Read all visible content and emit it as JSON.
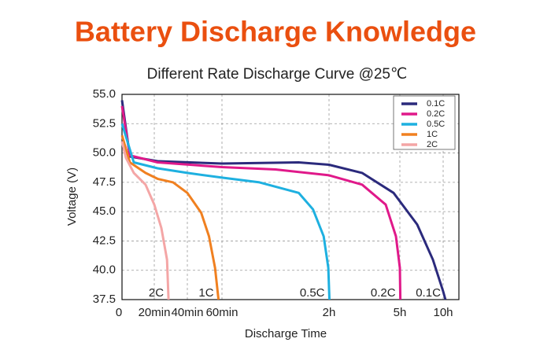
{
  "header": {
    "title": "Battery Discharge Knowledge"
  },
  "chart_data": {
    "type": "line",
    "title": "Different Rate Discharge Curve @25℃",
    "x_label": "Discharge Time",
    "y_label": "Voltage (V)",
    "xlim": [
      0,
      710
    ],
    "ylim": [
      37.5,
      55
    ],
    "xticks": [
      0,
      {
        "value": 20,
        "label": "20min"
      },
      {
        "value": 40,
        "label": "40min"
      },
      {
        "value": 60,
        "label": "60min"
      },
      {
        "value": 120,
        "label": "2h"
      },
      {
        "value": 300,
        "label": "5h"
      },
      {
        "value": 600,
        "label": "10h"
      }
    ],
    "yticks": [
      37.5,
      {
        "value": 40,
        "label": "40.0"
      },
      42.5,
      {
        "value": 45,
        "label": "45.0"
      },
      47.5,
      {
        "value": 50,
        "label": "50.0"
      },
      52.5,
      {
        "value": 55,
        "label": "55.0"
      }
    ],
    "grid": true,
    "legend": "top-right",
    "series": [
      {
        "name": "0.1C",
        "color": "#2b2a7c",
        "x": [
          0,
          4.9,
          22,
          60,
          103,
          120,
          204,
          284,
          420,
          529,
          600,
          616
        ],
        "values": [
          54.5,
          49.7,
          49.3,
          49.1,
          49.2,
          49.0,
          48.3,
          46.6,
          43.9,
          40.9,
          38.2,
          37.5
        ]
      },
      {
        "name": "0.2C",
        "color": "#e0198a",
        "x": [
          0,
          4.9,
          22,
          60,
          90,
          120,
          204,
          264,
          290,
          300,
          303
        ],
        "values": [
          54,
          49.8,
          49.2,
          48.8,
          48.6,
          48.1,
          47.3,
          45.6,
          42.9,
          40.2,
          37.5
        ]
      },
      {
        "name": "0.5C",
        "color": "#1eb0e0",
        "x": [
          0,
          7.3,
          22,
          40,
          60,
          81,
          103,
          111,
          117,
          119.6,
          121
        ],
        "values": [
          52.5,
          49.2,
          48.7,
          48.3,
          47.9,
          47.5,
          46.6,
          45.2,
          42.9,
          40.2,
          37.5
        ]
      },
      {
        "name": "1C",
        "color": "#f08020",
        "x": [
          0,
          4.9,
          14.6,
          22,
          31.4,
          40,
          48,
          52.5,
          56,
          58
        ],
        "values": [
          51.5,
          49.2,
          48.3,
          47.8,
          47.5,
          46.6,
          44.9,
          42.9,
          40.2,
          37.5
        ]
      },
      {
        "name": "2C",
        "color": "#f4a6a6",
        "x": [
          0,
          2.4,
          7.3,
          14.6,
          20,
          24.3,
          27.7,
          28.6
        ],
        "values": [
          51,
          49.6,
          48.3,
          47.3,
          45.6,
          43.6,
          40.9,
          37.5
        ]
      }
    ]
  }
}
